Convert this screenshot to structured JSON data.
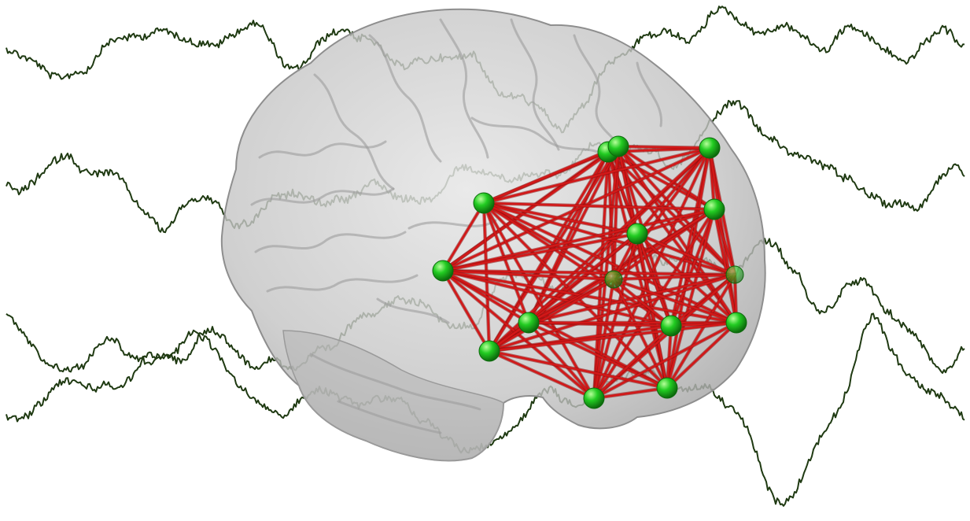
{
  "colors": {
    "background": "#ffffff",
    "eeg_trace": "#1f3a12",
    "brain_fill": "#c9c9c9",
    "brain_shade": "#9a9a9a",
    "edge": "#d21818",
    "edge_dark": "#8a0c0c",
    "node": "#22cc22",
    "node_highlight": "#b6ff9a",
    "node_dark": "#0c6a0c"
  },
  "figure": {
    "eeg_channel_count": 4,
    "network_node_count": 15,
    "network_connectivity": "fully-connected",
    "node_icon": "green-sphere-icon",
    "brain_view": "left-lateral-transparent"
  }
}
